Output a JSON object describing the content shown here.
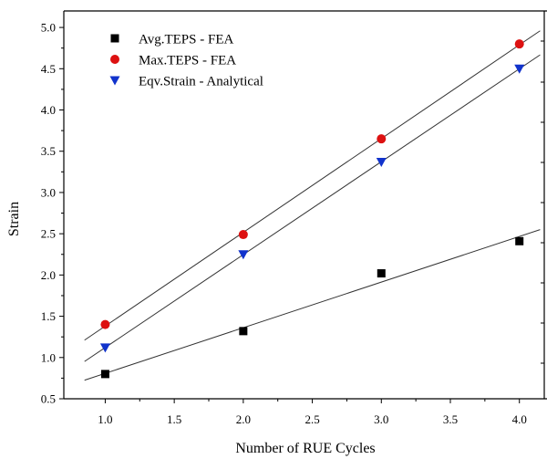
{
  "chart_data": {
    "type": "scatter",
    "xlabel": "Number of RUE Cycles",
    "ylabel": "Strain",
    "xlim": [
      0.7,
      4.2
    ],
    "ylim": [
      0.5,
      5.2
    ],
    "x_ticks": [
      "1.0",
      "1.5",
      "2.0",
      "2.5",
      "3.0",
      "3.5",
      "4.0"
    ],
    "y_ticks": [
      "0.5",
      "1.0",
      "1.5",
      "2.0",
      "2.5",
      "3.0",
      "3.5",
      "4.0",
      "4.5",
      "5.0"
    ],
    "legend_position": "top-left",
    "grid": false,
    "x": [
      1,
      2,
      3,
      4
    ],
    "series": [
      {
        "name": "Avg.TEPS - FEA",
        "marker": "square",
        "color": "#000000",
        "values": [
          0.8,
          1.32,
          2.02,
          2.41
        ]
      },
      {
        "name": "Max.TEPS - FEA",
        "marker": "circle",
        "color": "#dd1111",
        "values": [
          1.4,
          2.49,
          3.65,
          4.8
        ]
      },
      {
        "name": "Eqv.Strain - Analytical",
        "marker": "triangle-down",
        "color": "#1133cc",
        "values": [
          1.12,
          2.25,
          3.37,
          4.5
        ]
      }
    ]
  }
}
